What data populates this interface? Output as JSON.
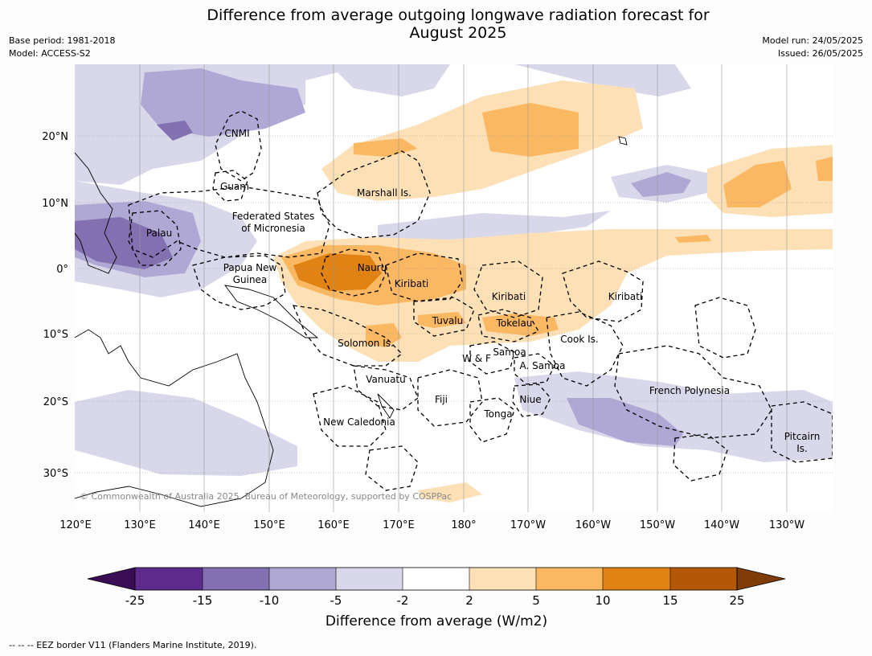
{
  "title_line1": "Difference from average outgoing longwave radiation forecast for",
  "title_line2": "August 2025",
  "base_period": "Base period: 1981-2018",
  "model": "Model: ACCESS-S2",
  "model_run": "Model run: 24/05/2025",
  "issued": "Issued: 26/05/2025",
  "copyright": "© Commonwealth of Australia 2025, Bureau of Meteorology, supported by COSPPac",
  "footer": "--  --  -- EEZ border V11 (Flanders Marine Institute, 2019).",
  "lon_labels": [
    "120°E",
    "130°E",
    "140°E",
    "150°E",
    "160°E",
    "170°E",
    "180°",
    "170°W",
    "160°W",
    "150°W",
    "140°W",
    "130°W"
  ],
  "lat_labels": [
    "20°N",
    "10°N",
    "0°",
    "10°S",
    "20°S",
    "30°S"
  ],
  "regions": {
    "cnmi": "CNMI",
    "guam": "Guam",
    "marshall": "Marshall Is.",
    "fsm1": "Federated States",
    "fsm2": "of Micronesia",
    "palau": "Palau",
    "png1": "Papua New",
    "png2": "Guinea",
    "nauru": "Nauru",
    "kiribati1": "Kiribati",
    "kiribati2": "Kiribati",
    "kiribati3": "Kiribati",
    "tuvalu": "Tuvalu",
    "tokelau": "Tokelau",
    "cook": "Cook Is.",
    "solomon": "Solomon Is.",
    "samoa": "Samoa",
    "wf": "W & F",
    "asamoa": "A. Samoa",
    "vanuatu": "Vanuatu",
    "fiji": "Fiji",
    "niue": "Niue",
    "tonga": "Tonga",
    "frenchpoly": "French Polynesia",
    "pitcairn1": "Pitcairn",
    "pitcairn2": "Is.",
    "newcal": "New Caledonia"
  },
  "colorbar": {
    "title": "Difference from average (W/m2)",
    "ticks": [
      "-25",
      "-15",
      "-10",
      "-5",
      "-2",
      "2",
      "5",
      "10",
      "15",
      "25"
    ],
    "colors": [
      "#3b0d54",
      "#5e2a8e",
      "#8270b0",
      "#b0a8d4",
      "#d8d8ea",
      "#ffffff",
      "#fde0b6",
      "#fbb862",
      "#e08214",
      "#b35806",
      "#7f3b08"
    ]
  }
}
